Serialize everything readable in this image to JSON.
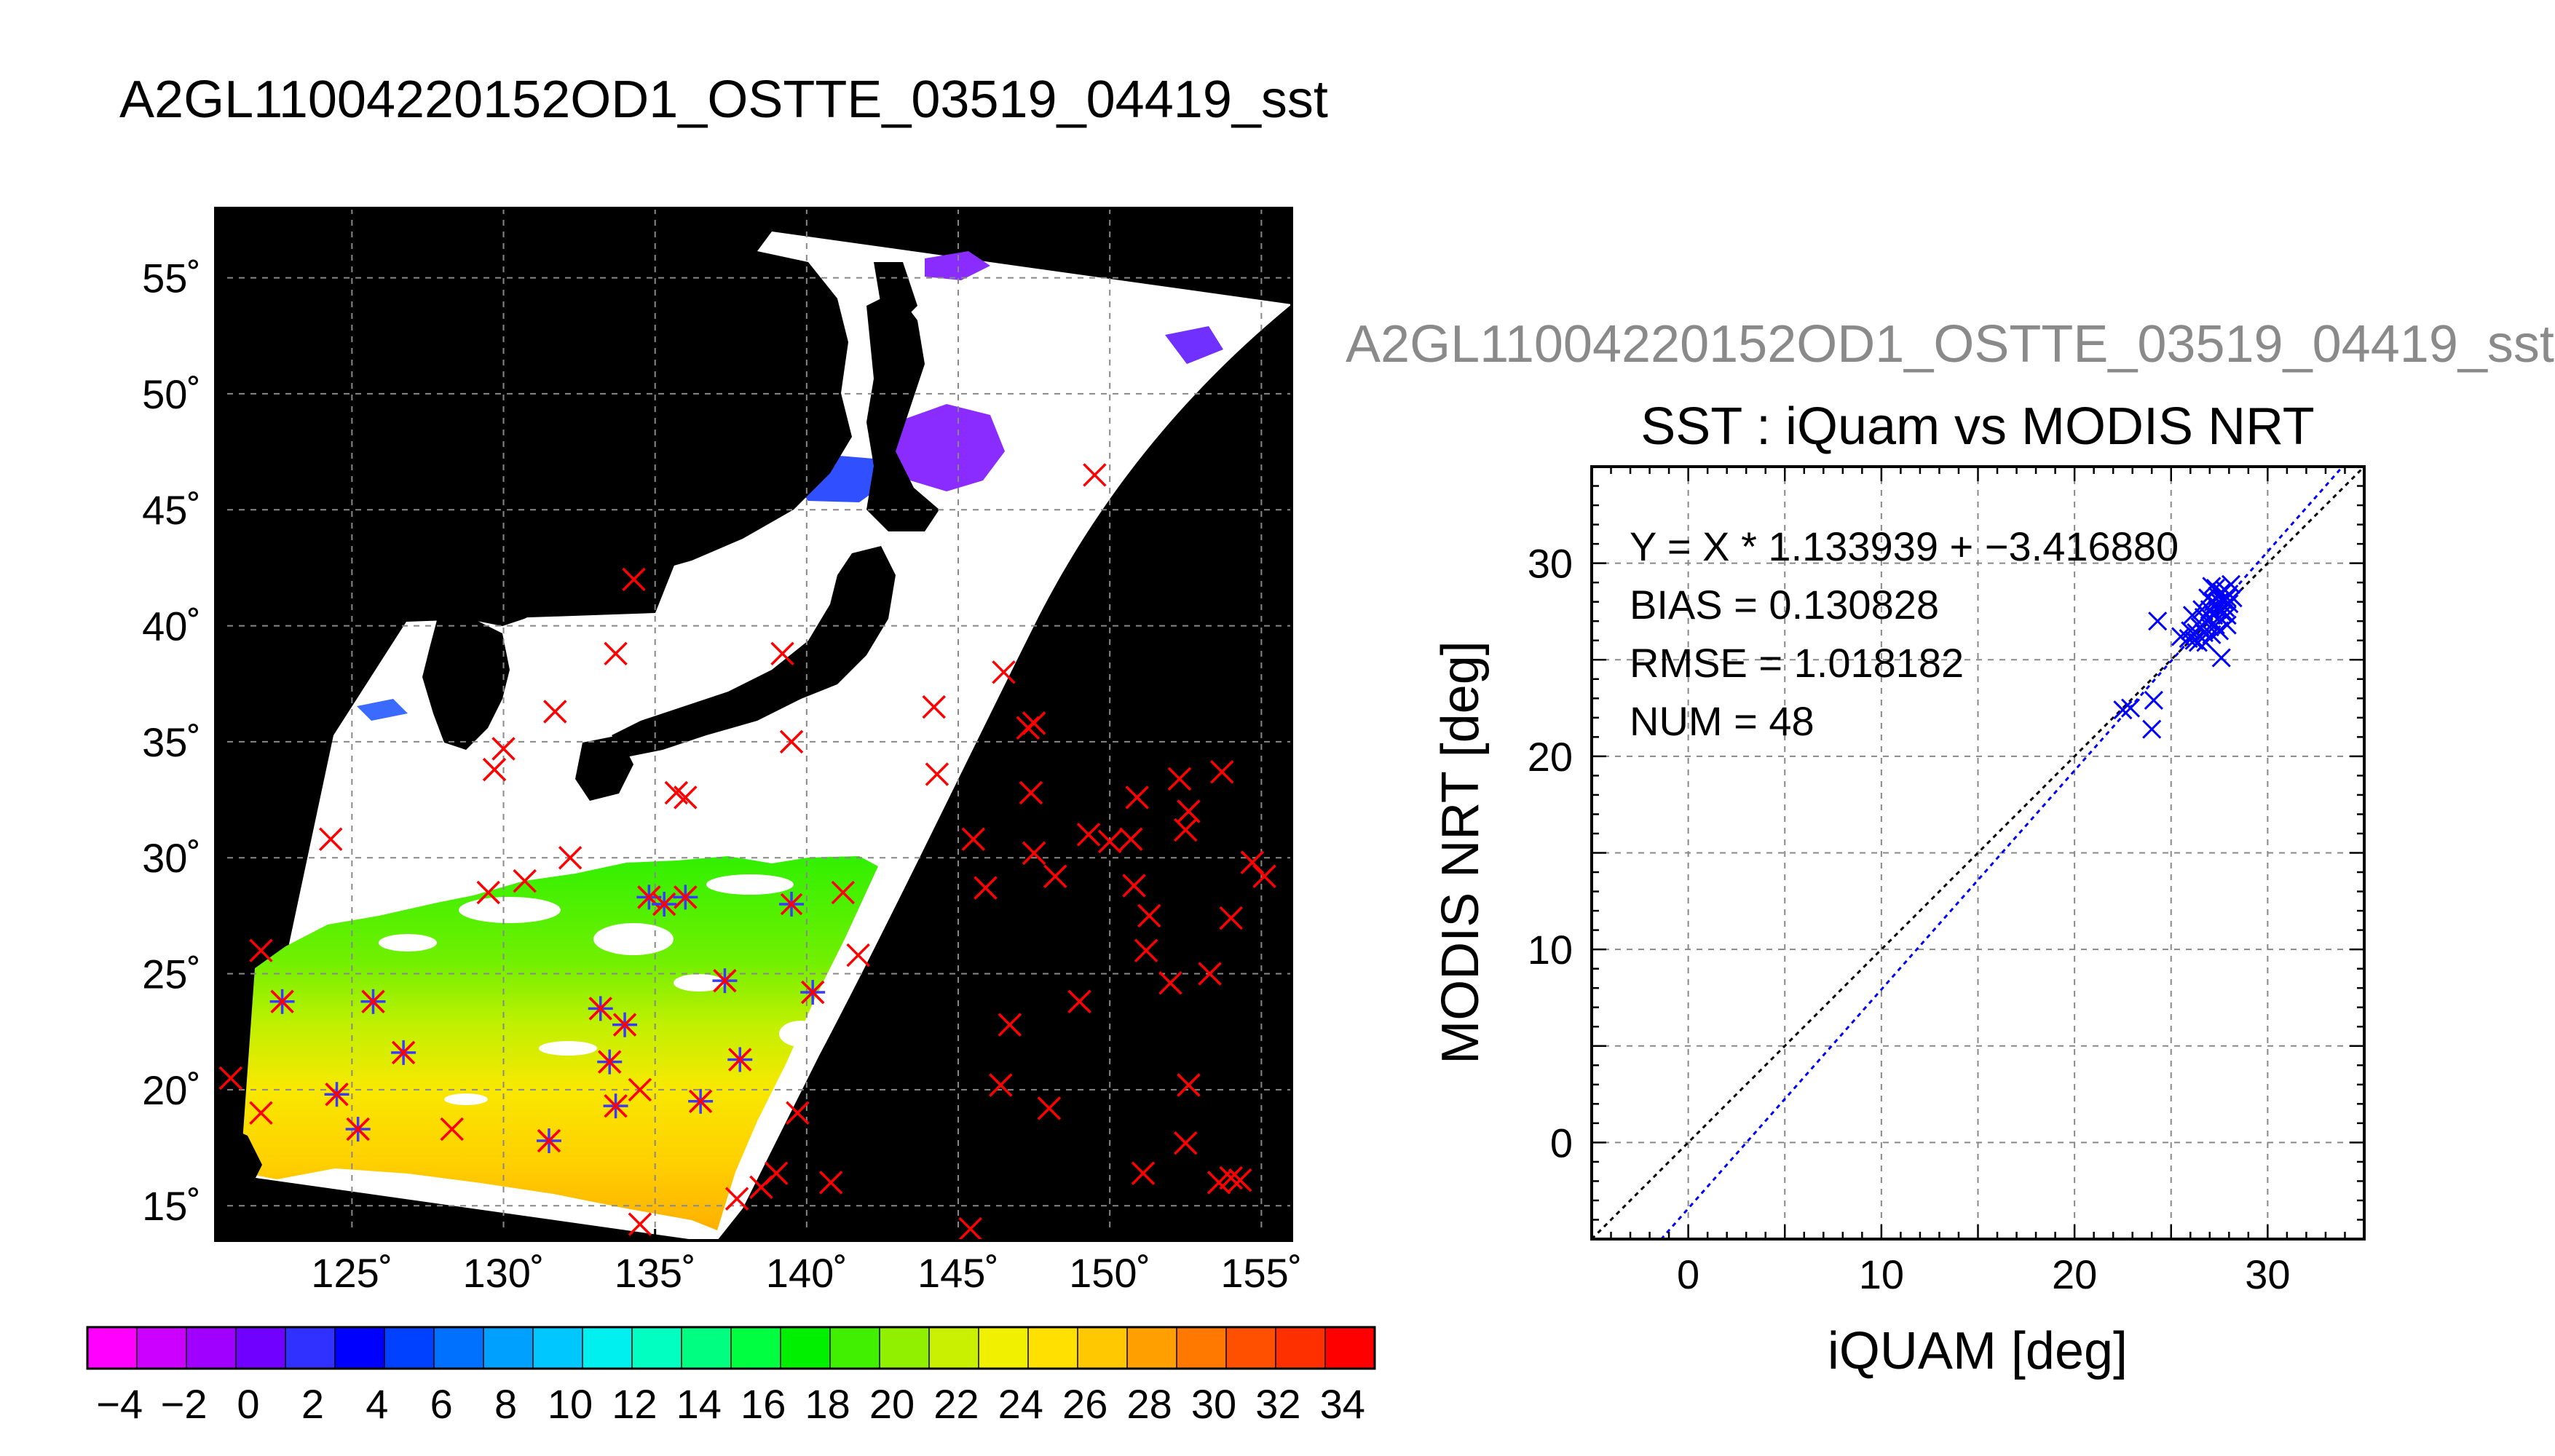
{
  "page": {
    "title": "A2GL11004220152OD1_OSTTE_03519_04419_sst",
    "scatter_outer_title": "A2GL11004220152OD1_OSTTE_03519_04419_sst"
  },
  "colors": {
    "map_background": "#000000",
    "land": "#000000",
    "cloud": "#ffffff",
    "iquam_marker": "#ff0000",
    "match_marker": "#3a3aff",
    "fit_line": "#0000ff",
    "identity_line": "#000000"
  },
  "chart_data": [
    {
      "type": "heatmap",
      "title": "",
      "x_ticks": [
        "125˚",
        "130˚",
        "135˚",
        "140˚",
        "145˚",
        "150˚",
        "155˚"
      ],
      "y_ticks": [
        "55˚",
        "50˚",
        "45˚",
        "40˚",
        "35˚",
        "30˚",
        "25˚",
        "20˚",
        "15˚"
      ],
      "xlim": [
        120.5,
        156
      ],
      "ylim": [
        13.5,
        58
      ],
      "grid": true,
      "colorbar": {
        "ticks": [
          "−4",
          "−2",
          "0",
          "2",
          "4",
          "6",
          "8",
          "10",
          "12",
          "14",
          "16",
          "18",
          "20",
          "22",
          "24",
          "26",
          "28",
          "30",
          "32",
          "34"
        ],
        "range": [
          -5,
          35
        ],
        "colors": [
          "#ff00ff",
          "#cc00ff",
          "#a000ff",
          "#7000ff",
          "#3030ff",
          "#0000ff",
          "#0040ff",
          "#0070ff",
          "#00a0ff",
          "#00c8ff",
          "#00f0f0",
          "#00ffc0",
          "#00ff80",
          "#00ff40",
          "#00f000",
          "#40f000",
          "#90f000",
          "#c8f000",
          "#f0f000",
          "#ffe000",
          "#ffc800",
          "#ffa000",
          "#ff7800",
          "#ff5000",
          "#ff3000",
          "#ff0000"
        ]
      },
      "iquam_points": [
        [
          122,
          26
        ],
        [
          122.7,
          23.8
        ],
        [
          125.7,
          23.8
        ],
        [
          126.7,
          21.6
        ],
        [
          121,
          20.5
        ],
        [
          122,
          19
        ],
        [
          124.5,
          19.8
        ],
        [
          125.2,
          18.3
        ],
        [
          128.3,
          18.3
        ],
        [
          124.3,
          30.8
        ],
        [
          129.7,
          33.8
        ],
        [
          130,
          34.7
        ],
        [
          129.5,
          28.5
        ],
        [
          130.7,
          29
        ],
        [
          131.7,
          36.3
        ],
        [
          132.2,
          30
        ],
        [
          131.5,
          17.8
        ],
        [
          133.2,
          23.5
        ],
        [
          133.5,
          21.2
        ],
        [
          134,
          22.8
        ],
        [
          133.7,
          19.3
        ],
        [
          133.7,
          38.8
        ],
        [
          134.3,
          42
        ],
        [
          134.8,
          28.3
        ],
        [
          135.3,
          28
        ],
        [
          134.5,
          20
        ],
        [
          134.5,
          14.2
        ],
        [
          136,
          28.3
        ],
        [
          135.7,
          32.8
        ],
        [
          136,
          32.6
        ],
        [
          136.5,
          19.5
        ],
        [
          137.3,
          24.7
        ],
        [
          137.8,
          21.3
        ],
        [
          137.7,
          15.3
        ],
        [
          138.5,
          15.8
        ],
        [
          139.2,
          38.8
        ],
        [
          139.5,
          35
        ],
        [
          139,
          16.4
        ],
        [
          139.7,
          19
        ],
        [
          140.2,
          24.2
        ],
        [
          140.8,
          16
        ],
        [
          141.2,
          28.5
        ],
        [
          141.7,
          25.8
        ],
        [
          144.2,
          36.5
        ],
        [
          144.3,
          33.6
        ],
        [
          145.5,
          30.8
        ],
        [
          145.9,
          28.7
        ],
        [
          146.4,
          20.2
        ],
        [
          146.7,
          22.8
        ],
        [
          146.5,
          38
        ],
        [
          147.3,
          35.6
        ],
        [
          147.5,
          35.8
        ],
        [
          147.4,
          32.8
        ],
        [
          147.5,
          30.2
        ],
        [
          148,
          19.2
        ],
        [
          148.2,
          29.2
        ],
        [
          149,
          23.8
        ],
        [
          149.3,
          31
        ],
        [
          149.5,
          46.5
        ],
        [
          150,
          30.7
        ],
        [
          150.8,
          28.8
        ],
        [
          150.7,
          30.8
        ],
        [
          150.9,
          32.6
        ],
        [
          151.2,
          26
        ],
        [
          151.3,
          27.5
        ],
        [
          151.1,
          16.4
        ],
        [
          152,
          24.6
        ],
        [
          152.3,
          33.4
        ],
        [
          152.5,
          31.2
        ],
        [
          152.6,
          32
        ],
        [
          152.6,
          20.2
        ],
        [
          152.5,
          17.7
        ],
        [
          153.3,
          25
        ],
        [
          153.7,
          33.7
        ],
        [
          153.6,
          16
        ],
        [
          154,
          16.2
        ],
        [
          154,
          27.4
        ],
        [
          154.3,
          16.1
        ],
        [
          154.7,
          29.8
        ],
        [
          155.1,
          29.2
        ],
        [
          145.4,
          14
        ]
      ],
      "matchup_points": [
        [
          122.7,
          23.8
        ],
        [
          125.7,
          23.8
        ],
        [
          126.7,
          21.6
        ],
        [
          124.5,
          19.8
        ],
        [
          125.2,
          18.3
        ],
        [
          133.2,
          23.5
        ],
        [
          133.5,
          21.2
        ],
        [
          134,
          22.8
        ],
        [
          133.7,
          19.3
        ],
        [
          134.8,
          28.3
        ],
        [
          135.3,
          28
        ],
        [
          136,
          28.3
        ],
        [
          137.3,
          24.7
        ],
        [
          137.8,
          21.3
        ],
        [
          136.5,
          19.5
        ],
        [
          139.5,
          28
        ],
        [
          140.2,
          24.2
        ],
        [
          131.5,
          17.8
        ]
      ]
    },
    {
      "type": "scatter",
      "title": "SST : iQuam vs MODIS NRT",
      "xlabel": "iQUAM [deg]",
      "ylabel": "MODIS NRT [deg]",
      "xlim": [
        -5,
        35
      ],
      "ylim": [
        -5,
        35
      ],
      "x_ticks": [
        "0",
        "10",
        "20",
        "30"
      ],
      "y_ticks": [
        "0",
        "10",
        "20",
        "30"
      ],
      "grid": true,
      "annotations": [
        "Y = X * 1.133939 + −3.416880",
        "BIAS = 0.130828",
        "RMSE = 1.018182",
        "NUM = 48"
      ],
      "fit": {
        "slope": 1.133939,
        "intercept": -3.41688
      },
      "points": [
        [
          22.5,
          22.4
        ],
        [
          22.9,
          22.5
        ],
        [
          24.0,
          21.4
        ],
        [
          24.1,
          22.9
        ],
        [
          24.3,
          27.0
        ],
        [
          25.5,
          26.2
        ],
        [
          25.9,
          26.1
        ],
        [
          26.0,
          26.5
        ],
        [
          26.1,
          27.3
        ],
        [
          26.2,
          26.0
        ],
        [
          26.3,
          26.4
        ],
        [
          26.4,
          25.9
        ],
        [
          26.5,
          26.7
        ],
        [
          26.6,
          26.1
        ],
        [
          26.7,
          27.2
        ],
        [
          26.7,
          26.4
        ],
        [
          26.8,
          25.9
        ],
        [
          26.9,
          27.0
        ],
        [
          27.0,
          26.7
        ],
        [
          27.0,
          27.6
        ],
        [
          27.1,
          26.3
        ],
        [
          27.2,
          28.0
        ],
        [
          27.2,
          27.3
        ],
        [
          27.3,
          26.8
        ],
        [
          27.3,
          28.7
        ],
        [
          27.4,
          27.6
        ],
        [
          27.4,
          28.3
        ],
        [
          27.5,
          27.2
        ],
        [
          27.5,
          28.0
        ],
        [
          27.6,
          25.1
        ],
        [
          27.6,
          27.9
        ],
        [
          27.6,
          28.5
        ],
        [
          27.7,
          27.4
        ],
        [
          27.7,
          28.1
        ],
        [
          27.8,
          27.7
        ],
        [
          27.8,
          28.6
        ],
        [
          27.9,
          26.8
        ],
        [
          27.9,
          28.2
        ],
        [
          28.0,
          27.9
        ],
        [
          28.0,
          28.4
        ],
        [
          28.1,
          28.9
        ],
        [
          27.2,
          26.9
        ],
        [
          27.5,
          26.5
        ],
        [
          26.9,
          28.2
        ],
        [
          27.1,
          28.8
        ],
        [
          27.9,
          27.3
        ],
        [
          28.2,
          28.2
        ],
        [
          26.6,
          27.6
        ]
      ]
    }
  ]
}
